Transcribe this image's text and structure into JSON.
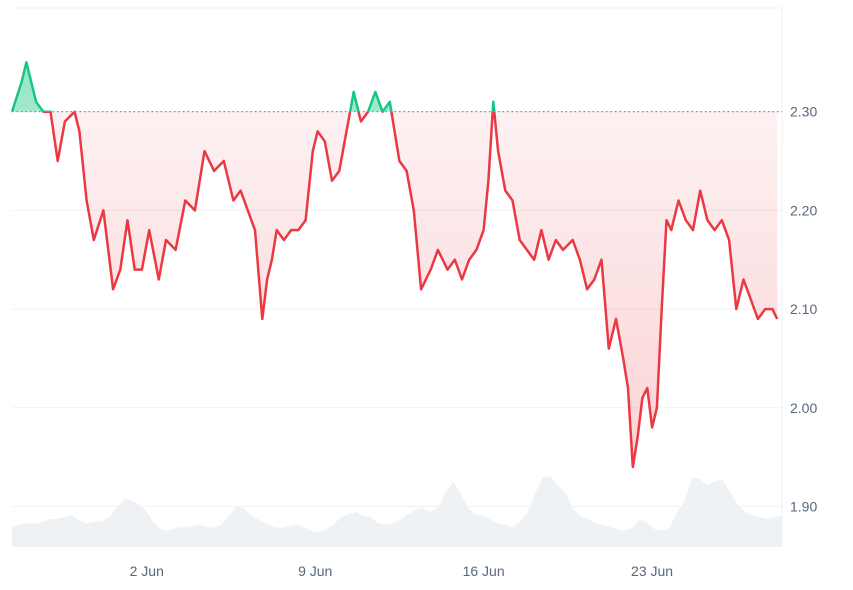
{
  "chart_data": {
    "type": "line",
    "baseline": 2.3,
    "ylim": [
      1.86,
      2.405
    ],
    "y_ticks": [
      "2.30",
      "2.20",
      "2.10",
      "2.00",
      "1.90"
    ],
    "x_ticks": [
      "2 Jun",
      "9 Jun",
      "16 Jun",
      "23 Jun"
    ],
    "x_range_days": [
      -3.6,
      28.4
    ],
    "colors": {
      "up": "#16c784",
      "down": "#ea3943",
      "volume": "#eff2f5",
      "grid": "#f0f2f5",
      "axis_text": "#58667e"
    },
    "series": [
      {
        "x": [
          -3.6,
          -3.2,
          -3.0,
          -2.6,
          -2.3,
          -2.0,
          -1.7,
          -1.4,
          -1.0,
          -0.8,
          -0.5,
          -0.2,
          0.2,
          0.6,
          0.9,
          1.2,
          1.5,
          1.8,
          2.1,
          2.5,
          2.8,
          3.2,
          3.6,
          4.0,
          4.4,
          4.8,
          5.2,
          5.6,
          5.9,
          6.2,
          6.5,
          6.8,
          7.0,
          7.2,
          7.4,
          7.7,
          8.0,
          8.3,
          8.6,
          8.9,
          9.1,
          9.4,
          9.7,
          10.0,
          10.3,
          10.6,
          10.9,
          11.2,
          11.5,
          11.8,
          12.1,
          12.5,
          12.8,
          13.1,
          13.4,
          13.8,
          14.1,
          14.5,
          14.8,
          15.1,
          15.4,
          15.7,
          16.0,
          16.2,
          16.4,
          16.6,
          16.9,
          17.2,
          17.5,
          17.8,
          18.1,
          18.4,
          18.7,
          19.0,
          19.3,
          19.7,
          20.0,
          20.3,
          20.6,
          20.9,
          21.2,
          21.5,
          21.8,
          22.0,
          22.2,
          22.4,
          22.6,
          22.8,
          23.0,
          23.2,
          23.4,
          23.6,
          23.8,
          24.1,
          24.4,
          24.7,
          25.0,
          25.3,
          25.6,
          25.9,
          26.2,
          26.5,
          26.8,
          27.1,
          27.4,
          27.7,
          28.0,
          28.2
        ],
        "values": [
          2.3,
          2.33,
          2.35,
          2.31,
          2.3,
          2.3,
          2.25,
          2.29,
          2.3,
          2.28,
          2.21,
          2.17,
          2.2,
          2.12,
          2.14,
          2.19,
          2.14,
          2.14,
          2.18,
          2.13,
          2.17,
          2.16,
          2.21,
          2.2,
          2.26,
          2.24,
          2.25,
          2.21,
          2.22,
          2.2,
          2.18,
          2.09,
          2.13,
          2.15,
          2.18,
          2.17,
          2.18,
          2.18,
          2.19,
          2.26,
          2.28,
          2.27,
          2.23,
          2.24,
          2.28,
          2.32,
          2.29,
          2.3,
          2.32,
          2.3,
          2.31,
          2.25,
          2.24,
          2.2,
          2.12,
          2.14,
          2.16,
          2.14,
          2.15,
          2.13,
          2.15,
          2.16,
          2.18,
          2.23,
          2.31,
          2.26,
          2.22,
          2.21,
          2.17,
          2.16,
          2.15,
          2.18,
          2.15,
          2.17,
          2.16,
          2.17,
          2.15,
          2.12,
          2.13,
          2.15,
          2.06,
          2.09,
          2.05,
          2.02,
          1.94,
          1.97,
          2.01,
          2.02,
          1.98,
          2.0,
          2.1,
          2.19,
          2.18,
          2.21,
          2.19,
          2.18,
          2.22,
          2.19,
          2.18,
          2.19,
          2.17,
          2.1,
          2.13,
          2.11,
          2.09,
          2.1,
          2.1,
          2.09
        ]
      }
    ],
    "volume": [
      0.25,
      0.28,
      0.3,
      0.29,
      0.31,
      0.35,
      0.36,
      0.38,
      0.4,
      0.34,
      0.3,
      0.32,
      0.32,
      0.38,
      0.5,
      0.62,
      0.6,
      0.55,
      0.45,
      0.3,
      0.22,
      0.2,
      0.24,
      0.25,
      0.26,
      0.28,
      0.25,
      0.24,
      0.28,
      0.4,
      0.52,
      0.5,
      0.4,
      0.35,
      0.3,
      0.25,
      0.24,
      0.26,
      0.28,
      0.25,
      0.2,
      0.18,
      0.22,
      0.28,
      0.38,
      0.42,
      0.45,
      0.4,
      0.38,
      0.3,
      0.28,
      0.3,
      0.35,
      0.42,
      0.48,
      0.5,
      0.45,
      0.5,
      0.7,
      0.85,
      0.7,
      0.5,
      0.42,
      0.4,
      0.35,
      0.3,
      0.28,
      0.25,
      0.32,
      0.45,
      0.7,
      0.9,
      0.92,
      0.8,
      0.7,
      0.5,
      0.4,
      0.36,
      0.3,
      0.28,
      0.25,
      0.22,
      0.2,
      0.24,
      0.35,
      0.3,
      0.22,
      0.2,
      0.25,
      0.45,
      0.6,
      0.9,
      0.88,
      0.8,
      0.85,
      0.88,
      0.72,
      0.55,
      0.45,
      0.4,
      0.38,
      0.36,
      0.38,
      0.4
    ]
  }
}
